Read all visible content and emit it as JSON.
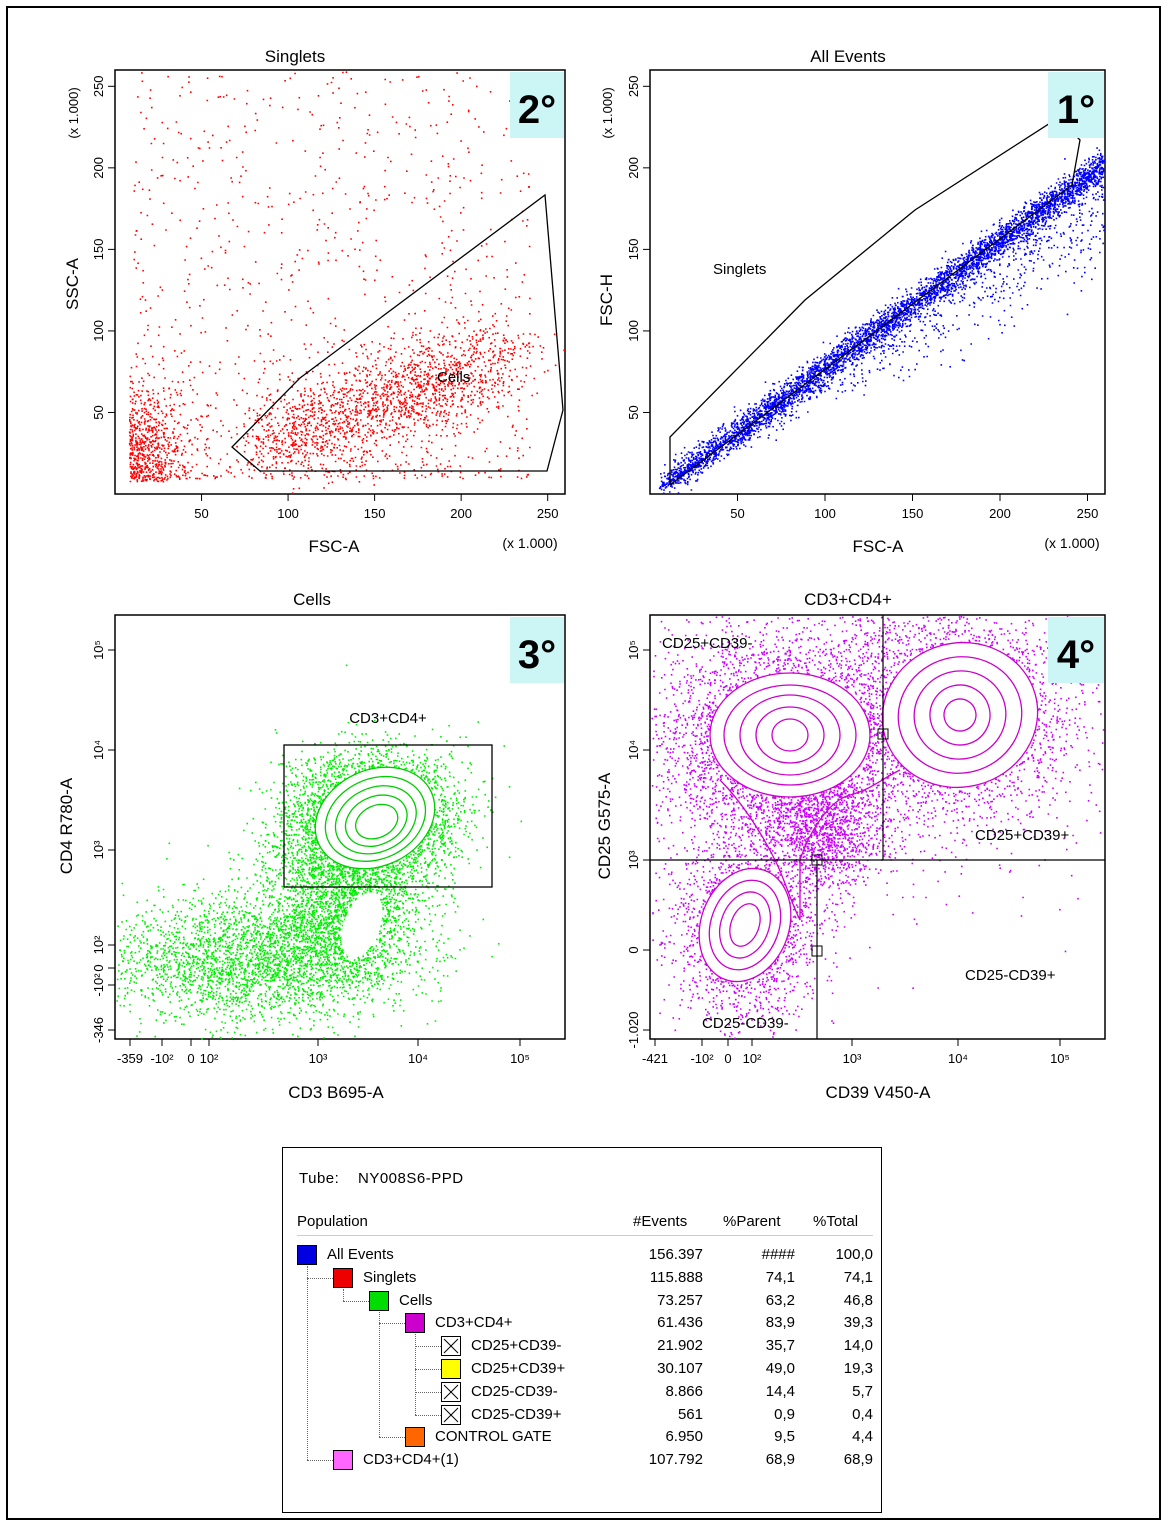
{
  "plots": [
    {
      "id": "p2",
      "title": "Singlets",
      "badge": "2°",
      "xlabel": "FSC-A",
      "ylabel": "SSC-A",
      "xunit": "(x 1.000)",
      "yunit": "(x 1.000)",
      "color": "#ff0000",
      "xticks": [
        "50",
        "100",
        "150",
        "200",
        "250"
      ],
      "yticks": [
        "50",
        "100",
        "150",
        "200",
        "250"
      ],
      "gate_label": "Cells"
    },
    {
      "id": "p1",
      "title": "All Events",
      "badge": "1°",
      "xlabel": "FSC-A",
      "ylabel": "FSC-H",
      "xunit": "(x 1.000)",
      "yunit": "(x 1.000)",
      "color": "#0000ff",
      "xticks": [
        "50",
        "100",
        "150",
        "200",
        "250"
      ],
      "yticks": [
        "50",
        "100",
        "150",
        "200",
        "250"
      ],
      "gate_label": "Singlets"
    },
    {
      "id": "p3",
      "title": "Cells",
      "badge": "3°",
      "xlabel": "CD3 B695-A",
      "ylabel": "CD4 R780-A",
      "color": "#00ee00",
      "xticks": [
        "-359",
        "-10²",
        "0",
        "10²",
        "10³",
        "10⁴",
        "10⁵"
      ],
      "yticks": [
        "-346",
        "-10²",
        "0",
        "10²",
        "10³",
        "10⁴",
        "10⁵"
      ],
      "gate_label": "CD3+CD4+"
    },
    {
      "id": "p4",
      "title": "CD3+CD4+",
      "badge": "4°",
      "xlabel": "CD39 V450-A",
      "ylabel": "CD25 G575-A",
      "color": "#cc00ff",
      "xticks": [
        "-421",
        "-10²",
        "0",
        "10²",
        "10³",
        "10⁴",
        "10⁵"
      ],
      "yticks": [
        "-1.020",
        "0",
        "10³",
        "10⁴",
        "10⁵"
      ],
      "quadrants": [
        "CD25+CD39-",
        "CD25+CD39+",
        "CD25-CD39-",
        "CD25-CD39+"
      ]
    }
  ],
  "stats": {
    "tube_label": "Tube:",
    "tube_name": "NY008S6-PPD",
    "headers": {
      "population": "Population",
      "events": "#Events",
      "parent": "%Parent",
      "total": "%Total"
    },
    "rows": [
      {
        "name": "All Events",
        "events": "156.397",
        "parent": "####",
        "total": "100,0",
        "color": "#0000e0",
        "level": 0
      },
      {
        "name": "Singlets",
        "events": "115.888",
        "parent": "74,1",
        "total": "74,1",
        "color": "#ee0000",
        "level": 1
      },
      {
        "name": "Cells",
        "events": "73.257",
        "parent": "63,2",
        "total": "46,8",
        "color": "#00dd00",
        "level": 2
      },
      {
        "name": "CD3+CD4+",
        "events": "61.436",
        "parent": "83,9",
        "total": "39,3",
        "color": "#cc00cc",
        "level": 3
      },
      {
        "name": "CD25+CD39-",
        "events": "21.902",
        "parent": "35,7",
        "total": "14,0",
        "color": "x",
        "level": 4
      },
      {
        "name": "CD25+CD39+",
        "events": "30.107",
        "parent": "49,0",
        "total": "19,3",
        "color": "#ffff00",
        "level": 4
      },
      {
        "name": "CD25-CD39-",
        "events": "8.866",
        "parent": "14,4",
        "total": "5,7",
        "color": "x",
        "level": 4
      },
      {
        "name": "CD25-CD39+",
        "events": "561",
        "parent": "0,9",
        "total": "0,4",
        "color": "x",
        "level": 4
      },
      {
        "name": "CONTROL GATE",
        "events": "6.950",
        "parent": "9,5",
        "total": "4,4",
        "color": "#ff6600",
        "level": 3
      },
      {
        "name": "CD3+CD4+(1)",
        "events": "107.792",
        "parent": "68,9",
        "total": "68,9",
        "color": "#ff66ff",
        "level": 1
      }
    ]
  },
  "chart_data": [
    {
      "type": "scatter",
      "title": "Singlets",
      "xlabel": "FSC-A",
      "ylabel": "SSC-A",
      "xlim": [
        0,
        260
      ],
      "ylim": [
        0,
        260
      ],
      "units": "x 1.000",
      "series": [
        {
          "name": "Singlets",
          "color": "#ff0000",
          "cluster_center": [
            130,
            60
          ]
        }
      ],
      "gate": {
        "name": "Cells",
        "polygon": [
          [
            68,
            30
          ],
          [
            85,
            15
          ],
          [
            250,
            15
          ],
          [
            262,
            55
          ],
          [
            250,
            185
          ],
          [
            110,
            70
          ]
        ]
      }
    },
    {
      "type": "scatter",
      "title": "All Events",
      "xlabel": "FSC-A",
      "ylabel": "FSC-H",
      "xlim": [
        0,
        260
      ],
      "ylim": [
        0,
        260
      ],
      "units": "x 1.000",
      "series": [
        {
          "name": "All Events",
          "color": "#0000ff",
          "trend": [
            [
              5,
              5
            ],
            [
              245,
              190
            ]
          ]
        }
      ],
      "gate": {
        "name": "Singlets",
        "polygon": [
          [
            10,
            30
          ],
          [
            10,
            38
          ],
          [
            150,
            168
          ],
          [
            235,
            223
          ],
          [
            245,
            235
          ],
          [
            245,
            190
          ],
          [
            245,
            180
          ],
          [
            5,
            5
          ]
        ]
      }
    },
    {
      "type": "scatter",
      "title": "Cells",
      "xlabel": "CD3 B695-A",
      "ylabel": "CD4 R780-A",
      "xscale": "biexponential",
      "yscale": "biexponential",
      "series": [
        {
          "name": "Cells",
          "color": "#00ee00"
        }
      ],
      "gate": {
        "name": "CD3+CD4+"
      }
    },
    {
      "type": "scatter",
      "title": "CD3+CD4+",
      "xlabel": "CD39 V450-A",
      "ylabel": "CD25 G575-A",
      "xscale": "biexponential",
      "yscale": "biexponential",
      "series": [
        {
          "name": "CD3+CD4+",
          "color": "#cc00ff"
        }
      ],
      "quadrants": [
        "CD25+CD39-",
        "CD25+CD39+",
        "CD25-CD39-",
        "CD25-CD39+"
      ]
    }
  ]
}
